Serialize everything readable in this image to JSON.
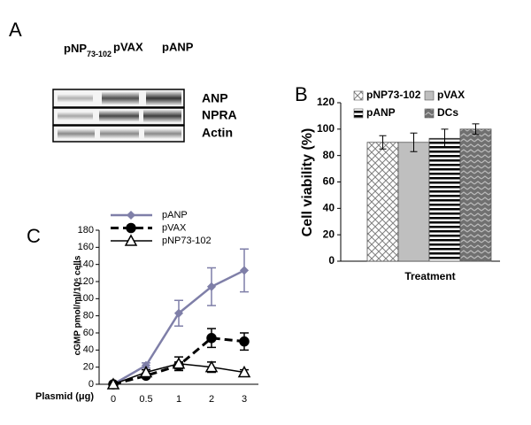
{
  "blot": {
    "panel": "A",
    "columns": [
      {
        "label": "pNP",
        "subscript": "73-102"
      },
      {
        "label": "pVAX"
      },
      {
        "label": "pANP"
      }
    ],
    "rows": [
      "ANP",
      "NPRA",
      "Actin"
    ]
  },
  "chart_data": [
    {
      "type": "bar",
      "panel": "B",
      "y_label": "Cell viability (%)",
      "x_label": "Treatment",
      "ylim": [
        0,
        120
      ],
      "yticks": [
        0,
        20,
        40,
        60,
        80,
        100,
        120
      ],
      "series": [
        {
          "name": "pNP73-102",
          "color": "#808080",
          "pattern": "crosshatch",
          "values": [
            90
          ],
          "errors": [
            5
          ]
        },
        {
          "name": "pVAX",
          "color": "#bfbfbf",
          "pattern": "solid",
          "values": [
            90
          ],
          "errors": [
            7
          ]
        },
        {
          "name": "pANP",
          "color": "#000000",
          "pattern": "hstripes",
          "values": [
            93
          ],
          "errors": [
            7
          ]
        },
        {
          "name": "DCs",
          "color": "#707070",
          "pattern": "zigzag",
          "values": [
            100
          ],
          "errors": [
            4
          ]
        }
      ]
    },
    {
      "type": "line",
      "panel": "C",
      "y_label": "cGMP pmol/ml/10⁶ cells",
      "x_label": "Plasmid (μg)",
      "categories": [
        "0",
        "0.5",
        "1",
        "2",
        "3"
      ],
      "ylim": [
        0,
        180
      ],
      "yticks": [
        0,
        20,
        40,
        60,
        80,
        100,
        120,
        140,
        160,
        180
      ],
      "series": [
        {
          "name": "pANP",
          "color": "#7f7fa8",
          "dash": "solid",
          "marker": "diamond",
          "values": [
            0,
            22,
            83,
            114,
            133
          ],
          "errors": [
            0,
            3,
            15,
            22,
            25
          ]
        },
        {
          "name": "pVAX",
          "color": "#000000",
          "dash": "dashed",
          "marker": "circle",
          "values": [
            0,
            10,
            22,
            54,
            50
          ],
          "errors": [
            0,
            2,
            4,
            11,
            10
          ]
        },
        {
          "name": "pNP73-102",
          "color": "#000000",
          "dash": "thin",
          "marker": "triangle",
          "values": [
            0,
            14,
            24,
            20,
            14
          ],
          "errors": [
            0,
            3,
            8,
            6,
            3
          ]
        }
      ]
    }
  ]
}
